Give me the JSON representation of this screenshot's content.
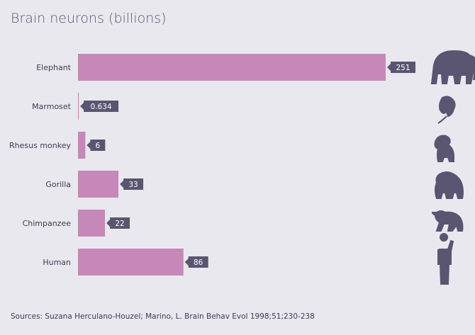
{
  "chart_data": {
    "type": "bar",
    "orientation": "horizontal",
    "title": "Brain neurons (billions)",
    "categories": [
      "Elephant",
      "Marmoset",
      "Rhesus monkey",
      "Gorilla",
      "Chimpanzee",
      "Human"
    ],
    "values": [
      251,
      0.634,
      6,
      33,
      22,
      86
    ],
    "value_labels": [
      "251",
      "0.634",
      "6",
      "33",
      "22",
      "86"
    ],
    "icons": [
      "elephant-icon",
      "marmoset-icon",
      "rhesus-monkey-icon",
      "gorilla-icon",
      "chimpanzee-icon",
      "human-icon"
    ],
    "xlabel": "",
    "ylabel": "",
    "xlim": [
      0,
      251
    ],
    "grid": false,
    "source": "Sources: Suzana Herculano-Houzel; Marino, L. Brain Behav Evol 1998;51;230-238"
  },
  "colors": {
    "bar": "#c688b8",
    "label_bg": "#5a5570",
    "icon": "#5a5570",
    "background": "#e9e8ee"
  }
}
